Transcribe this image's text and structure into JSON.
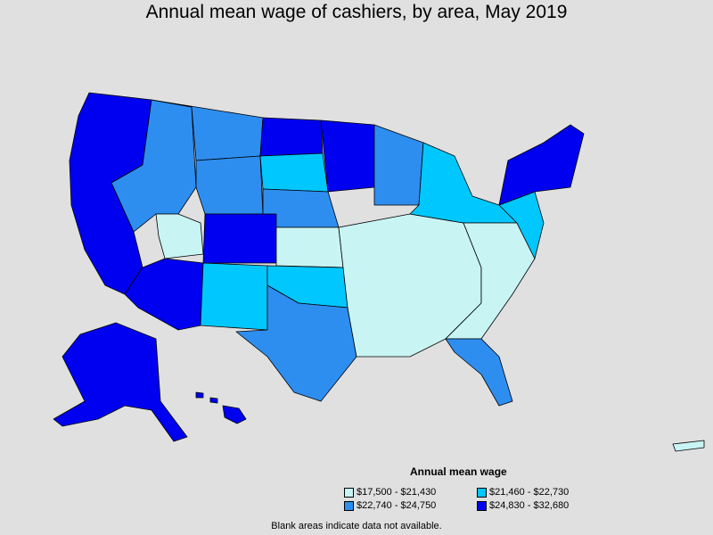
{
  "title": "Annual mean wage of cashiers, by area, May 2019",
  "legend": {
    "title": "Annual mean wage",
    "items": [
      {
        "label": "$17,500 - $21,430",
        "color": "#c8f4f4"
      },
      {
        "label": "$21,460 - $22,730",
        "color": "#00c8ff"
      },
      {
        "label": "$22,740 - $24,750",
        "color": "#2e8ef0"
      },
      {
        "label": "$24,830 - $32,680",
        "color": "#0000f0"
      }
    ]
  },
  "note": "Blank areas indicate data not available.",
  "colors": {
    "background": "#e0e0e0",
    "border": "#000000",
    "tier1": "#c8f4f4",
    "tier2": "#00c8ff",
    "tier3": "#2e8ef0",
    "tier4": "#0000f0"
  }
}
